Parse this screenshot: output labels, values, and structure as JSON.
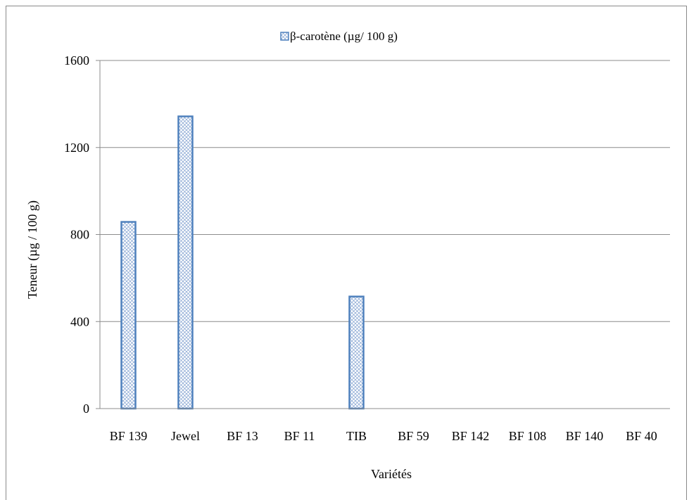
{
  "chart_data": {
    "type": "bar",
    "title": "",
    "xlabel": "Variétés",
    "ylabel": "Teneur (µg / 100 g)",
    "categories": [
      "BF 139",
      "Jewel",
      "BF 13",
      "BF 11",
      "TIB",
      "BF 59",
      "BF 142",
      "BF 108",
      "BF 140",
      "BF 40"
    ],
    "series": [
      {
        "name": "β-carotène (µg/ 100 g)",
        "values": [
          858,
          1343,
          0,
          0,
          515,
          0,
          0,
          0,
          0,
          0
        ],
        "color": "#dbe5f1",
        "edge_color": "#4f81bd"
      }
    ],
    "ylim": [
      0,
      1600
    ],
    "yticks": [
      "0",
      "400",
      "800",
      "1200",
      "1600"
    ],
    "grid": true,
    "legend_position": "top",
    "bar_pattern": "cross-hatch"
  }
}
